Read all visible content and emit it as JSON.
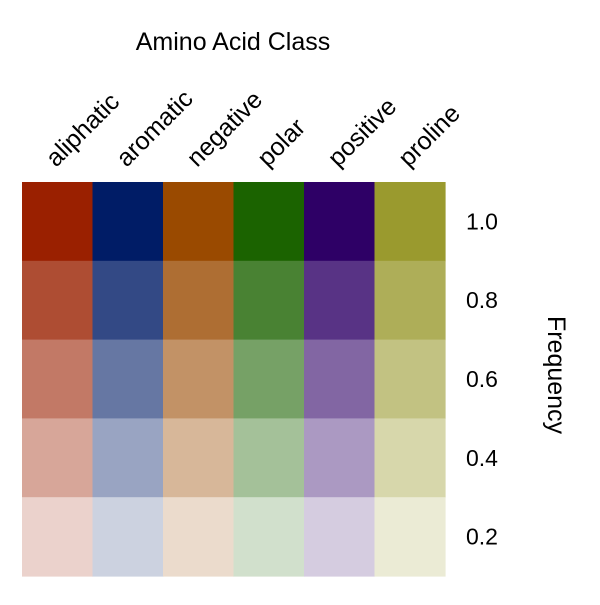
{
  "chart_data": {
    "type": "heatmap",
    "title": "Amino Acid Class",
    "categories": [
      "aliphatic",
      "aromatic",
      "negative",
      "polar",
      "positive",
      "proline"
    ],
    "colors": [
      "#9A2000",
      "#001C66",
      "#9A4A00",
      "#1B6300",
      "#2E0066",
      "#9A9A2E"
    ],
    "y_ticks": [
      "1.0",
      "0.8",
      "0.6",
      "0.4",
      "0.2"
    ],
    "y_values": [
      1.0,
      0.8,
      0.6,
      0.4,
      0.2
    ],
    "ylabel": "Frequency",
    "legend": "none"
  }
}
